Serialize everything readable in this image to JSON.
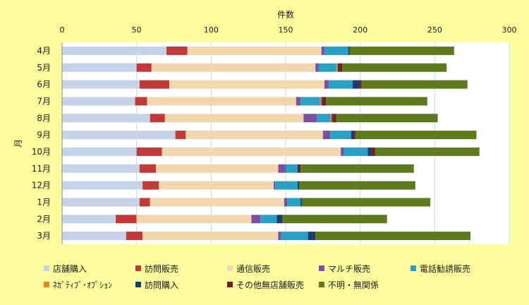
{
  "chart_data": {
    "type": "bar",
    "orientation": "horizontal",
    "stacked": true,
    "title": "",
    "xlabel": "件数",
    "ylabel": "月",
    "xlim": [
      0,
      300
    ],
    "x_ticks": [
      0,
      50,
      100,
      150,
      200,
      250,
      300
    ],
    "x_axis_position": "top",
    "grid": true,
    "legend_position": "bottom",
    "categories": [
      "4月",
      "5月",
      "6月",
      "7月",
      "8月",
      "9月",
      "10月",
      "11月",
      "12月",
      "1月",
      "2月",
      "3月"
    ],
    "series": [
      {
        "name": "店舗購入",
        "color": "#c5d3e8",
        "values": [
          70,
          50,
          52,
          49,
          59,
          76,
          50,
          52,
          54,
          52,
          36,
          43
        ]
      },
      {
        "name": "訪問販売",
        "color": "#c0393b",
        "values": [
          14,
          10,
          20,
          8,
          10,
          7,
          17,
          11,
          11,
          7,
          14,
          11
        ]
      },
      {
        "name": "通信販売",
        "color": "#f1d7ae",
        "values": [
          90,
          110,
          104,
          100,
          93,
          92,
          120,
          82,
          77,
          90,
          77,
          91
        ]
      },
      {
        "name": "マルチ販売",
        "color": "#7f4f9f",
        "values": [
          2,
          2,
          3,
          3,
          9,
          5,
          2,
          5,
          1,
          2,
          6,
          2
        ]
      },
      {
        "name": "電話勧誘販売",
        "color": "#2aa0c4",
        "values": [
          16,
          12,
          16,
          13,
          9,
          14,
          16,
          8,
          15,
          9,
          11,
          18
        ]
      },
      {
        "name": "ﾈｶﾞﾃｨﾌﾞ･ｵﾌﾟｼｮﾝ",
        "color": "#ed8020",
        "values": [
          0,
          1,
          0,
          1,
          1,
          0,
          0,
          0,
          0,
          0,
          0,
          0
        ]
      },
      {
        "name": "訪問購入",
        "color": "#1e3b6e",
        "values": [
          1,
          1,
          5,
          1,
          1,
          2,
          3,
          1,
          1,
          1,
          4,
          5
        ]
      },
      {
        "name": "その他無店舗販売",
        "color": "#7a1a14",
        "values": [
          0,
          2,
          1,
          2,
          2,
          1,
          2,
          1,
          0,
          0,
          0,
          0
        ]
      },
      {
        "name": "不明・無関係",
        "color": "#5d7a1e",
        "values": [
          70,
          70,
          71,
          68,
          68,
          81,
          70,
          76,
          78,
          86,
          70,
          104
        ]
      }
    ]
  }
}
